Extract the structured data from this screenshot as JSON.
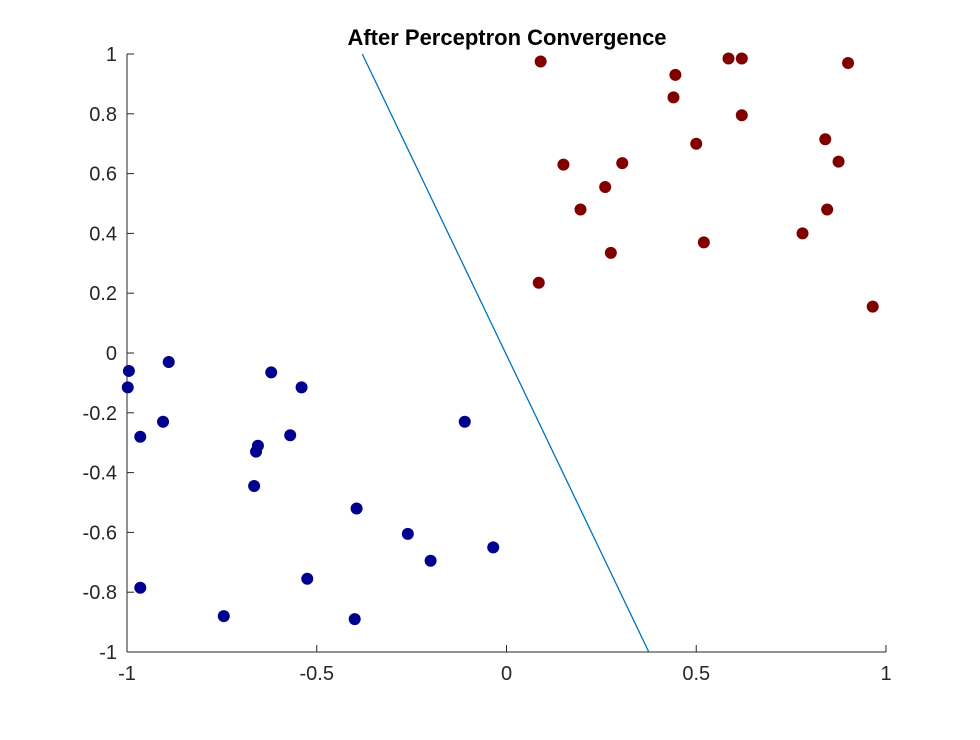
{
  "chart_data": {
    "type": "scatter",
    "title": "After Perceptron Convergence",
    "xlabel": "",
    "ylabel": "",
    "xlim": [
      -1,
      1
    ],
    "ylim": [
      -1,
      1
    ],
    "xticks": [
      -1,
      -0.5,
      0,
      0.5,
      1
    ],
    "xtick_labels": [
      "-1",
      "-0.5",
      "0",
      "0.5",
      "1"
    ],
    "yticks": [
      -1,
      -0.8,
      -0.6,
      -0.4,
      -0.2,
      0,
      0.2,
      0.4,
      0.6,
      0.8,
      1
    ],
    "ytick_labels": [
      "-1",
      "-0.8",
      "-0.6",
      "-0.4",
      "-0.2",
      "0",
      "0.2",
      "0.4",
      "0.6",
      "0.8",
      "1"
    ],
    "grid": false,
    "series": [
      {
        "color": "#00008f",
        "points": [
          [
            -0.995,
            -0.06
          ],
          [
            -0.998,
            -0.115
          ],
          [
            -0.89,
            -0.03
          ],
          [
            -0.965,
            -0.28
          ],
          [
            -0.905,
            -0.23
          ],
          [
            -0.62,
            -0.065
          ],
          [
            -0.54,
            -0.115
          ],
          [
            -0.655,
            -0.31
          ],
          [
            -0.66,
            -0.33
          ],
          [
            -0.57,
            -0.275
          ],
          [
            -0.665,
            -0.445
          ],
          [
            -0.395,
            -0.52
          ],
          [
            -0.26,
            -0.605
          ],
          [
            -0.11,
            -0.23
          ],
          [
            -0.2,
            -0.695
          ],
          [
            -0.035,
            -0.65
          ],
          [
            -0.525,
            -0.755
          ],
          [
            -0.965,
            -0.785
          ],
          [
            -0.745,
            -0.88
          ],
          [
            -0.4,
            -0.89
          ]
        ]
      },
      {
        "color": "#800000",
        "points": [
          [
            0.09,
            0.975
          ],
          [
            0.585,
            0.985
          ],
          [
            0.62,
            0.985
          ],
          [
            0.9,
            0.97
          ],
          [
            0.445,
            0.93
          ],
          [
            0.44,
            0.855
          ],
          [
            0.62,
            0.795
          ],
          [
            0.5,
            0.7
          ],
          [
            0.84,
            0.715
          ],
          [
            0.875,
            0.64
          ],
          [
            0.15,
            0.63
          ],
          [
            0.305,
            0.635
          ],
          [
            0.26,
            0.555
          ],
          [
            0.195,
            0.48
          ],
          [
            0.845,
            0.48
          ],
          [
            0.78,
            0.4
          ],
          [
            0.52,
            0.37
          ],
          [
            0.275,
            0.335
          ],
          [
            0.085,
            0.235
          ],
          [
            0.965,
            0.155
          ]
        ]
      }
    ],
    "lines": [
      {
        "color": "#0072bd",
        "points": [
          [
            -0.38,
            1.0
          ],
          [
            0.375,
            -1.0
          ]
        ]
      }
    ]
  }
}
